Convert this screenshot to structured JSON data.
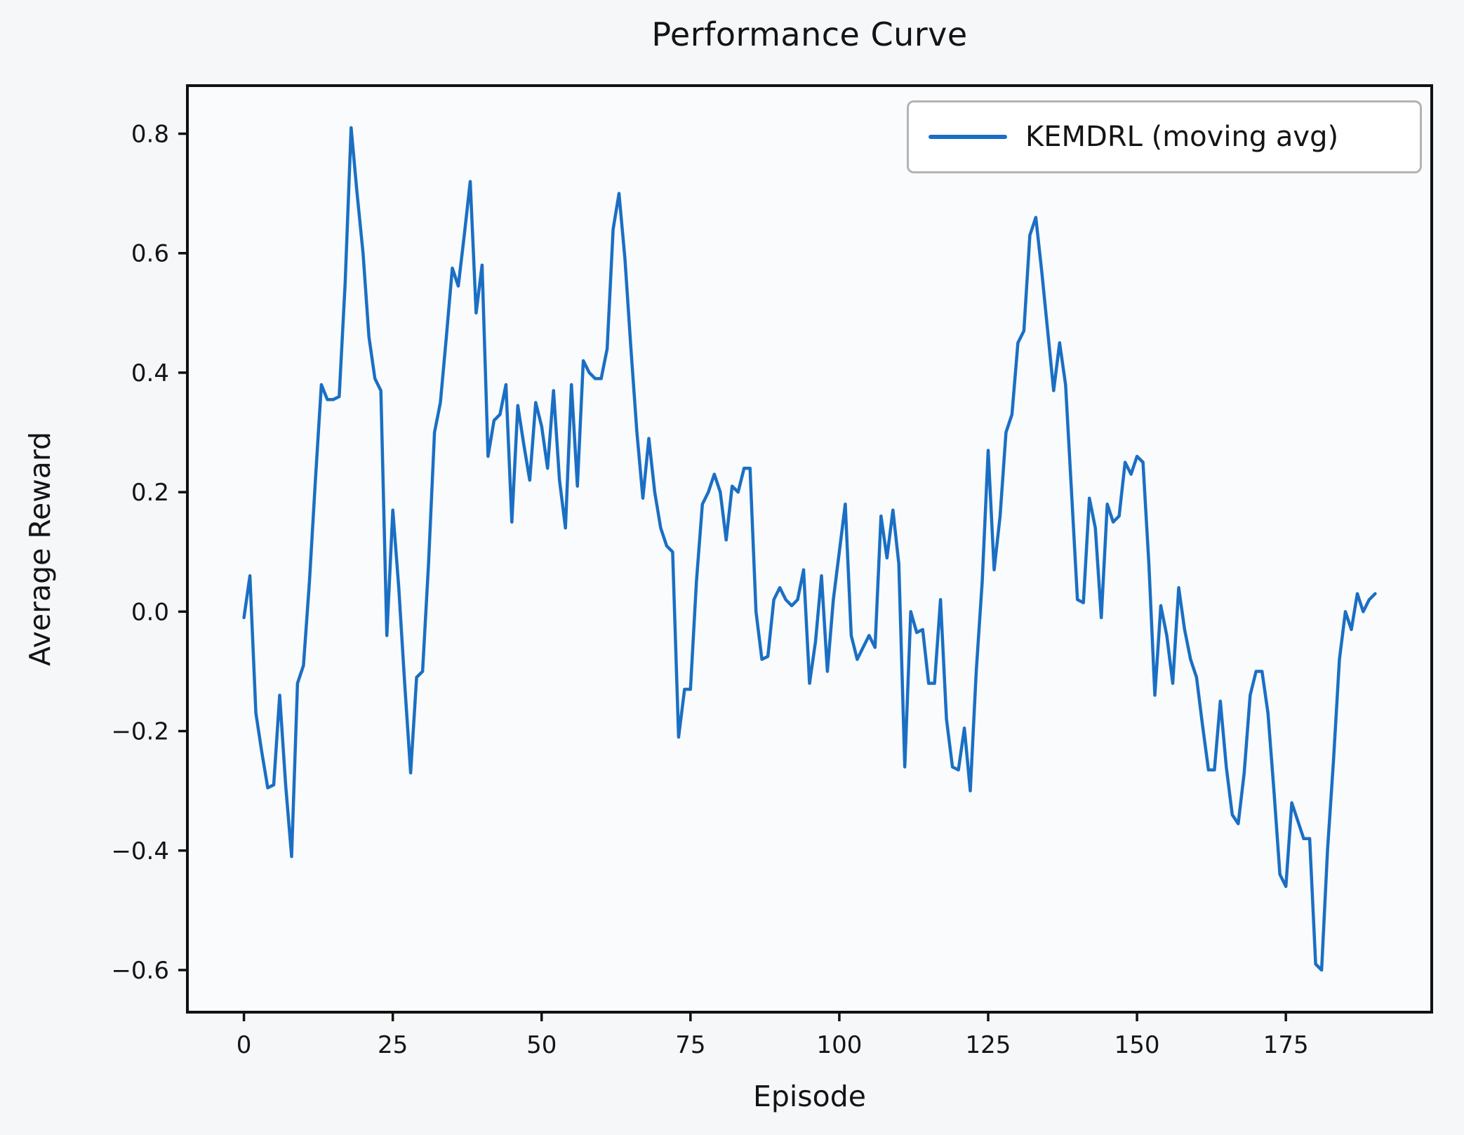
{
  "title": "Performance Curve",
  "axes": {
    "xlabel": "Episode",
    "ylabel": "Average Reward"
  },
  "legend": {
    "label": "KEMDRL (moving avg)"
  },
  "style": {
    "line_color": "#1a6fc4",
    "figure_bg": "#f6f7f9",
    "axes_bg": "#fafbfc",
    "spine_color": "#111111",
    "text_color": "#141414",
    "tick_font_size": 34
  },
  "chart_data": {
    "type": "line",
    "title": "Performance Curve",
    "xlabel": "Episode",
    "ylabel": "Average Reward",
    "legend_entries": [
      "KEMDRL (moving avg)"
    ],
    "legend_position": "upper right",
    "grid": false,
    "x_start": 0,
    "x_step": 1,
    "xlim": [
      -9.5,
      199.5
    ],
    "ylim": [
      -0.6705,
      0.8805
    ],
    "xticks": [
      0,
      25,
      50,
      75,
      100,
      125,
      150,
      175
    ],
    "yticks": [
      0.8,
      0.6,
      0.4,
      0.2,
      0.0,
      -0.2,
      -0.4,
      -0.6
    ],
    "ytick_labels": [
      "0.8",
      "0.6",
      "0.4",
      "0.2",
      "0.0",
      "−0.2",
      "−0.4",
      "−0.6"
    ],
    "series": [
      {
        "name": "KEMDRL (moving avg)",
        "color": "#1a6fc4",
        "values": [
          -0.01,
          0.06,
          -0.17,
          -0.235,
          -0.295,
          -0.29,
          -0.14,
          -0.29,
          -0.41,
          -0.12,
          -0.09,
          0.05,
          0.22,
          0.38,
          0.355,
          0.355,
          0.36,
          0.55,
          0.81,
          0.7,
          0.6,
          0.46,
          0.39,
          0.37,
          -0.04,
          0.17,
          0.04,
          -0.12,
          -0.27,
          -0.11,
          -0.1,
          0.08,
          0.3,
          0.35,
          0.46,
          0.575,
          0.545,
          0.63,
          0.72,
          0.5,
          0.58,
          0.26,
          0.32,
          0.33,
          0.38,
          0.15,
          0.345,
          0.28,
          0.22,
          0.35,
          0.31,
          0.24,
          0.37,
          0.22,
          0.14,
          0.38,
          0.21,
          0.42,
          0.4,
          0.39,
          0.39,
          0.44,
          0.64,
          0.7,
          0.59,
          0.44,
          0.3,
          0.19,
          0.29,
          0.2,
          0.14,
          0.11,
          0.1,
          -0.21,
          -0.13,
          -0.13,
          0.05,
          0.18,
          0.2,
          0.23,
          0.2,
          0.12,
          0.21,
          0.2,
          0.24,
          0.24,
          0.0,
          -0.08,
          -0.075,
          0.02,
          0.04,
          0.02,
          0.01,
          0.02,
          0.07,
          -0.12,
          -0.05,
          0.06,
          -0.1,
          0.02,
          0.1,
          0.18,
          -0.04,
          -0.08,
          -0.06,
          -0.04,
          -0.06,
          0.16,
          0.09,
          0.17,
          0.08,
          -0.26,
          0.0,
          -0.035,
          -0.03,
          -0.12,
          -0.12,
          0.02,
          -0.18,
          -0.26,
          -0.265,
          -0.195,
          -0.3,
          -0.1,
          0.05,
          0.27,
          0.07,
          0.16,
          0.3,
          0.33,
          0.45,
          0.47,
          0.63,
          0.66,
          0.57,
          0.47,
          0.37,
          0.45,
          0.38,
          0.2,
          0.02,
          0.015,
          0.19,
          0.14,
          -0.01,
          0.18,
          0.15,
          0.16,
          0.25,
          0.23,
          0.26,
          0.25,
          0.08,
          -0.14,
          0.01,
          -0.04,
          -0.12,
          0.04,
          -0.03,
          -0.08,
          -0.11,
          -0.19,
          -0.265,
          -0.265,
          -0.15,
          -0.26,
          -0.34,
          -0.355,
          -0.27,
          -0.14,
          -0.1,
          -0.1,
          -0.17,
          -0.3,
          -0.44,
          -0.46,
          -0.32,
          -0.35,
          -0.38,
          -0.38,
          -0.59,
          -0.6,
          -0.4,
          -0.25,
          -0.08,
          0.0,
          -0.03,
          0.03,
          0.0,
          0.02,
          0.03
        ]
      }
    ]
  }
}
